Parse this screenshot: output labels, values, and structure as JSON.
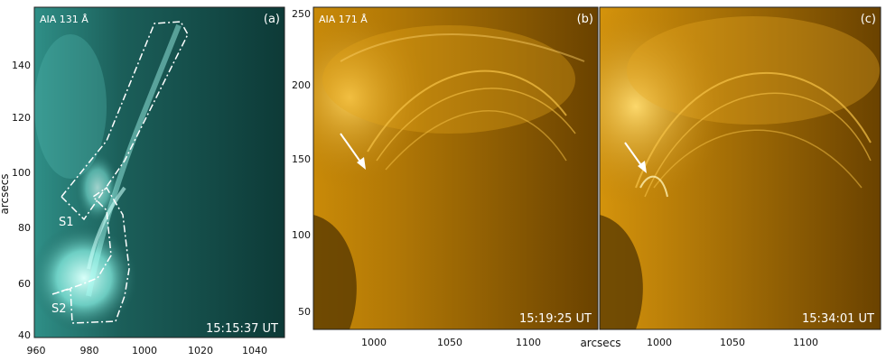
{
  "panels": [
    {
      "instrument": "AIA 131 Å",
      "letter": "(a)",
      "time": "15:15:37 UT",
      "colors": {
        "base": "#0e3c3a",
        "bright": "#8ff5ea"
      },
      "region_labels": [
        "S1",
        "S2"
      ],
      "y_ticks": [
        "140",
        "120",
        "100",
        "80",
        "60",
        "40"
      ],
      "x_ticks": [
        "960",
        "980",
        "1000",
        "1020",
        "1040"
      ]
    },
    {
      "instrument": "AIA 171 Å",
      "letter": "(b)",
      "time": "15:19:25 UT",
      "colors": {
        "base": "#6a4200",
        "bright": "#f5b51a"
      },
      "y_ticks": [
        "250",
        "200",
        "150",
        "100",
        "50"
      ],
      "x_ticks": [
        "1000",
        "1050",
        "1100"
      ]
    },
    {
      "letter": "(c)",
      "time": "15:34:01 UT",
      "colors": {
        "base": "#6a4200",
        "bright": "#f5b51a"
      },
      "x_ticks": [
        "1000",
        "1050",
        "1100"
      ]
    }
  ],
  "axes": {
    "y_title": "arcsecs",
    "x_title": "arcsecs"
  }
}
